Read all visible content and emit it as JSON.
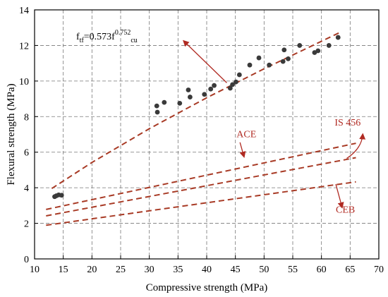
{
  "chart_data": {
    "type": "scatter",
    "title": "",
    "xlabel": "Compressive strength (MPa)",
    "ylabel": "Flexural strength (MPa)",
    "xlim": [
      10,
      70
    ],
    "ylim": [
      0,
      14
    ],
    "xticks": [
      10,
      15,
      20,
      25,
      30,
      35,
      40,
      45,
      50,
      55,
      60,
      65,
      70
    ],
    "yticks": [
      0,
      2,
      4,
      6,
      8,
      10,
      12,
      14
    ],
    "grid": true,
    "equation": {
      "prefix": "f",
      "sub1": "tf",
      "mid": "=0.573f",
      "sup": "0.752",
      "sub2": "cu"
    },
    "points": [
      {
        "x": 13.5,
        "y": 3.5
      },
      {
        "x": 13.8,
        "y": 3.55
      },
      {
        "x": 14.2,
        "y": 3.6
      },
      {
        "x": 14.7,
        "y": 3.58
      },
      {
        "x": 31.3,
        "y": 8.6
      },
      {
        "x": 31.4,
        "y": 8.25
      },
      {
        "x": 32.6,
        "y": 8.8
      },
      {
        "x": 35.3,
        "y": 8.75
      },
      {
        "x": 36.8,
        "y": 9.5
      },
      {
        "x": 37.1,
        "y": 9.1
      },
      {
        "x": 39.6,
        "y": 9.25
      },
      {
        "x": 40.7,
        "y": 9.55
      },
      {
        "x": 41.3,
        "y": 9.75
      },
      {
        "x": 44.1,
        "y": 9.6
      },
      {
        "x": 44.5,
        "y": 9.8
      },
      {
        "x": 45.1,
        "y": 9.95
      },
      {
        "x": 45.7,
        "y": 10.35
      },
      {
        "x": 47.5,
        "y": 10.9
      },
      {
        "x": 49.1,
        "y": 11.3
      },
      {
        "x": 50.9,
        "y": 10.9
      },
      {
        "x": 53.3,
        "y": 11.1
      },
      {
        "x": 53.5,
        "y": 11.75
      },
      {
        "x": 54.2,
        "y": 11.25
      },
      {
        "x": 56.2,
        "y": 12.0
      },
      {
        "x": 58.8,
        "y": 11.6
      },
      {
        "x": 59.4,
        "y": 11.7
      },
      {
        "x": 61.3,
        "y": 12.0
      },
      {
        "x": 62.9,
        "y": 12.45
      }
    ],
    "curves": [
      {
        "id": "fit",
        "points": [
          [
            13,
            3.96
          ],
          [
            20,
            5.42
          ],
          [
            30,
            7.32
          ],
          [
            40,
            9.06
          ],
          [
            50,
            10.69
          ],
          [
            63,
            12.7
          ]
        ]
      },
      {
        "id": "ace",
        "points": [
          [
            12,
            2.78
          ],
          [
            66,
            6.5
          ]
        ]
      },
      {
        "id": "is456",
        "points": [
          [
            12,
            2.42
          ],
          [
            66,
            5.69
          ]
        ]
      },
      {
        "id": "ceb",
        "points": [
          [
            12,
            1.89
          ],
          [
            66,
            4.33
          ]
        ]
      }
    ],
    "annotations": [
      {
        "id": "ace",
        "text": "ACE",
        "label_x": 45.2,
        "label_y": 6.85,
        "arrow_from": [
          45.8,
          6.55
        ],
        "arrow_to": [
          46.5,
          5.75
        ]
      },
      {
        "id": "is456",
        "text": "IS 456",
        "label_x": 62.3,
        "label_y": 7.5,
        "arrow_curve": [
          [
            64.4,
            5.65
          ],
          [
            67.0,
            6.2
          ],
          [
            67.2,
            7.0
          ]
        ]
      },
      {
        "id": "ceb",
        "text": "CEB",
        "label_x": 62.5,
        "label_y": 2.6,
        "arrow_from": [
          62.5,
          4.2
        ],
        "arrow_to": [
          63.6,
          2.9
        ]
      },
      {
        "id": "fit",
        "text": "",
        "arrow_from": [
          43.5,
          9.9
        ],
        "arrow_to": [
          36.0,
          12.25
        ]
      }
    ]
  }
}
